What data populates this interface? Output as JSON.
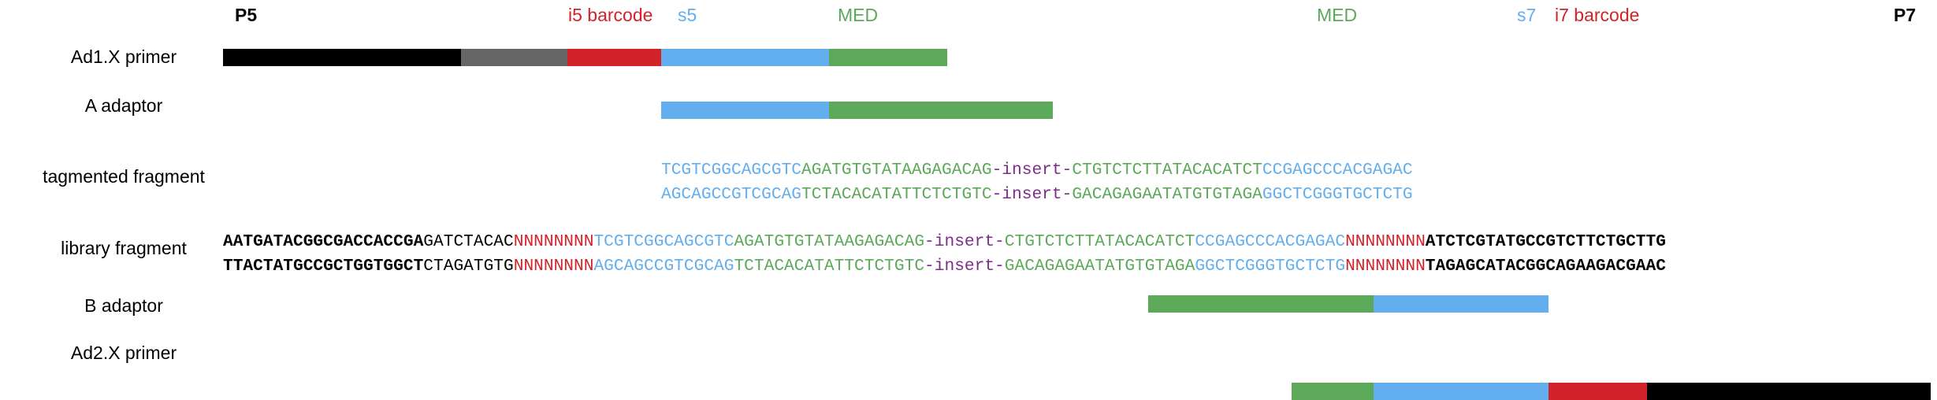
{
  "colors": {
    "black": "#000000",
    "grey": "#666666",
    "red": "#d2232a",
    "blue": "#63aeef",
    "green": "#5da95a",
    "purple": "#7b2d8b"
  },
  "header": {
    "p5": "P5",
    "i5_barcode": "i5 barcode",
    "s5": "s5",
    "med_left": "MED",
    "med_right": "MED",
    "s7": "s7",
    "i7_barcode": "i7 barcode",
    "p7": "P7"
  },
  "rows": {
    "ad1_primer": "Ad1.X primer",
    "a_adaptor": "A adaptor",
    "tagmented_fragment": "tagmented fragment",
    "library_fragment": "library fragment",
    "b_adaptor": "B adaptor",
    "ad2_primer": "Ad2.X primer"
  },
  "bars": {
    "ad1_primer": [
      "black",
      "grey",
      "red",
      "blue",
      "green"
    ],
    "a_adaptor": [
      "blue",
      "green"
    ],
    "b_adaptor": [
      "green",
      "blue"
    ],
    "ad2_primer": [
      "green",
      "blue",
      "red",
      "black"
    ]
  },
  "sequences": {
    "tagmented_top": [
      {
        "text": "TCGTCGGCAGCGTC",
        "color": "blue"
      },
      {
        "text": "AGATGTGTATAAGAGACAG",
        "color": "green"
      },
      {
        "text": "-insert-",
        "color": "purple"
      },
      {
        "text": "CTGTCTCTTATACACATCT",
        "color": "green"
      },
      {
        "text": "CCGAGCCCACGAGAC",
        "color": "blue"
      }
    ],
    "tagmented_bottom": [
      {
        "text": "AGCAGCCGTCGCAG",
        "color": "blue"
      },
      {
        "text": "TCTACACATATTCTCTGTC",
        "color": "green"
      },
      {
        "text": "-insert-",
        "color": "purple"
      },
      {
        "text": "GACAGAGAATATGTGTAGA",
        "color": "green"
      },
      {
        "text": "GGCTCGGGTGCTCTG",
        "color": "blue"
      }
    ],
    "library_top": [
      {
        "text": "AATGATACGGCGACCACCGA",
        "color": "black",
        "bold": true
      },
      {
        "text": "GATCTACAC",
        "color": "black"
      },
      {
        "text": "NNNNNNNN",
        "color": "red"
      },
      {
        "text": "TCGTCGGCAGCGTC",
        "color": "blue"
      },
      {
        "text": "AGATGTGTATAAGAGACAG",
        "color": "green"
      },
      {
        "text": "-insert-",
        "color": "purple"
      },
      {
        "text": "CTGTCTCTTATACACATCT",
        "color": "green"
      },
      {
        "text": "CCGAGCCCACGAGAC",
        "color": "blue"
      },
      {
        "text": "NNNNNNNN",
        "color": "red"
      },
      {
        "text": "ATCTCGTATGCCGTCTTCTGCTTG",
        "color": "black",
        "bold": true
      }
    ],
    "library_bottom": [
      {
        "text": "TTACTATGCCGCTGGTGGCT",
        "color": "black",
        "bold": true
      },
      {
        "text": "CTAGATGTG",
        "color": "black"
      },
      {
        "text": "NNNNNNNN",
        "color": "red"
      },
      {
        "text": "AGCAGCCGTCGCAG",
        "color": "blue"
      },
      {
        "text": "TCTACACATATTCTCTGTC",
        "color": "green"
      },
      {
        "text": "-insert-",
        "color": "purple"
      },
      {
        "text": "GACAGAGAATATGTGTAGA",
        "color": "green"
      },
      {
        "text": "GGCTCGGGTGCTCTG",
        "color": "blue"
      },
      {
        "text": "NNNNNNNN",
        "color": "red"
      },
      {
        "text": "TAGAGCATACGGCAGAAGACGAAC",
        "color": "black",
        "bold": true
      }
    ]
  }
}
